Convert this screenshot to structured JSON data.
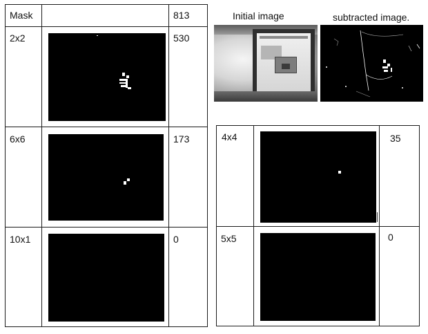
{
  "left_table": {
    "header": {
      "label": "Mask",
      "value": "813"
    },
    "rows": [
      {
        "label": "2x2",
        "value": "530"
      },
      {
        "label": "6x6",
        "value": "173"
      },
      {
        "label": "10x1",
        "value": "0"
      }
    ]
  },
  "right_table": {
    "rows": [
      {
        "label": "4x4",
        "value": "35"
      },
      {
        "label": "5x5",
        "value": "0"
      }
    ]
  },
  "captions": {
    "initial": "Initial image",
    "subtracted": "subtracted image."
  },
  "colors": {
    "mask_background": "#000000",
    "foreground": "#ffffff",
    "grid_line": "#1a1a1a"
  }
}
